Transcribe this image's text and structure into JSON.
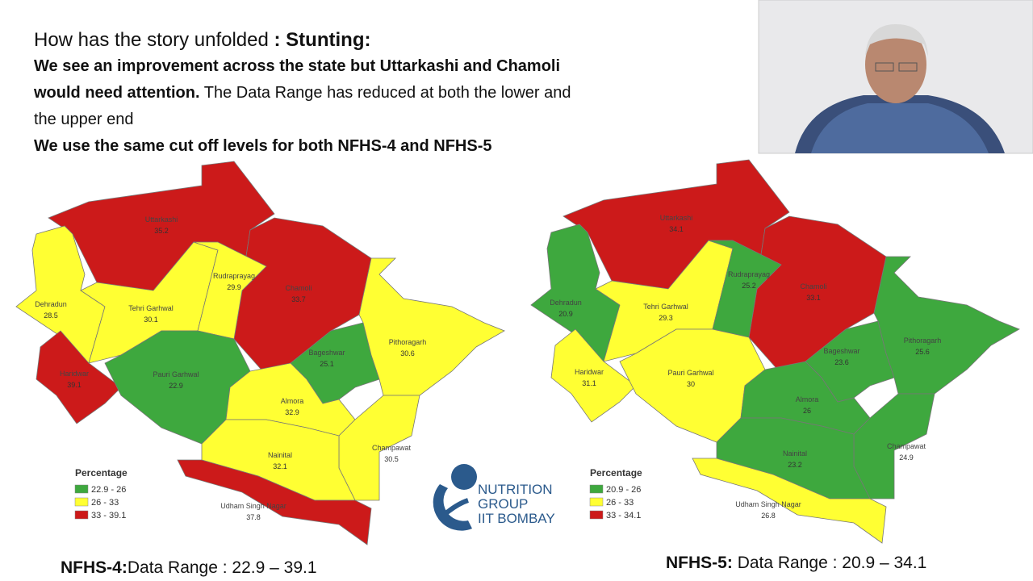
{
  "header": {
    "title_light": "How has the story unfolded",
    "title_bold": ": Stunting:",
    "line1_bold": "We see an improvement across the state but Uttarkashi and Chamoli would need attention.",
    "line1_rest": "The Data Range has reduced at both the lower and the upper end",
    "line2": "We use the same cut off levels for both NFHS-4 and NFHS-5"
  },
  "maps": [
    {
      "districts": [
        {
          "name": "Uttarkashi",
          "value": 35.2,
          "color": "#cc1a1a"
        },
        {
          "name": "Chamoli",
          "value": 33.7,
          "color": "#cc1a1a"
        },
        {
          "name": "Dehradun",
          "value": 28.5,
          "color": "#ffff33"
        },
        {
          "name": "Tehri Garhwal",
          "value": 30.1,
          "color": "#ffff33"
        },
        {
          "name": "Rudraprayag",
          "value": 29.9,
          "color": "#ffff33"
        },
        {
          "name": "Haridwar",
          "value": 39.1,
          "color": "#cc1a1a"
        },
        {
          "name": "Pauri Garhwal",
          "value": 22.9,
          "color": "#3ea83e"
        },
        {
          "name": "Bageshwar",
          "value": 25.1,
          "color": "#3ea83e"
        },
        {
          "name": "Pithoragarh",
          "value": 30.6,
          "color": "#ffff33"
        },
        {
          "name": "Almora",
          "value": 32.9,
          "color": "#ffff33"
        },
        {
          "name": "Champawat",
          "value": 30.5,
          "color": "#ffff33"
        },
        {
          "name": "Nainital",
          "value": 32.1,
          "color": "#ffff33"
        },
        {
          "name": "Udham Singh Nagar",
          "value": 37.8,
          "color": "#cc1a1a"
        }
      ],
      "legend": {
        "title": "Percentage",
        "items": [
          {
            "label": "22.9 - 26",
            "color": "#3ea83e"
          },
          {
            "label": "26 - 33",
            "color": "#ffff33"
          },
          {
            "label": "33 - 39.1",
            "color": "#cc1a1a"
          }
        ]
      },
      "caption_bold": "NFHS-4:",
      "caption": "Data Range : 22.9 – 39.1"
    },
    {
      "districts": [
        {
          "name": "Uttarkashi",
          "value": 34.1,
          "color": "#cc1a1a"
        },
        {
          "name": "Chamoli",
          "value": 33.1,
          "color": "#cc1a1a"
        },
        {
          "name": "Dehradun",
          "value": 20.9,
          "color": "#3ea83e"
        },
        {
          "name": "Tehri Garhwal",
          "value": 29.3,
          "color": "#ffff33"
        },
        {
          "name": "Rudraprayag",
          "value": 25.2,
          "color": "#3ea83e"
        },
        {
          "name": "Haridwar",
          "value": 31.1,
          "color": "#ffff33"
        },
        {
          "name": "Pauri Garhwal",
          "value": 30,
          "color": "#ffff33"
        },
        {
          "name": "Bageshwar",
          "value": 23.6,
          "color": "#3ea83e"
        },
        {
          "name": "Pithoragarh",
          "value": 25.6,
          "color": "#3ea83e"
        },
        {
          "name": "Almora",
          "value": 26,
          "color": "#3ea83e"
        },
        {
          "name": "Champawat",
          "value": 24.9,
          "color": "#3ea83e"
        },
        {
          "name": "Nainital",
          "value": 23.2,
          "color": "#3ea83e"
        },
        {
          "name": "Udham Singh Nagar",
          "value": 26.8,
          "color": "#ffff33"
        }
      ],
      "legend": {
        "title": "Percentage",
        "items": [
          {
            "label": "20.9 - 26",
            "color": "#3ea83e"
          },
          {
            "label": "26 - 33",
            "color": "#ffff33"
          },
          {
            "label": "33 - 34.1",
            "color": "#cc1a1a"
          }
        ]
      },
      "caption_bold": "NFHS-5:",
      "caption": "Data Range : 20.9 – 34.1"
    }
  ],
  "logo": [
    "NUTRITION",
    "GROUP",
    "IIT BOMBAY"
  ]
}
